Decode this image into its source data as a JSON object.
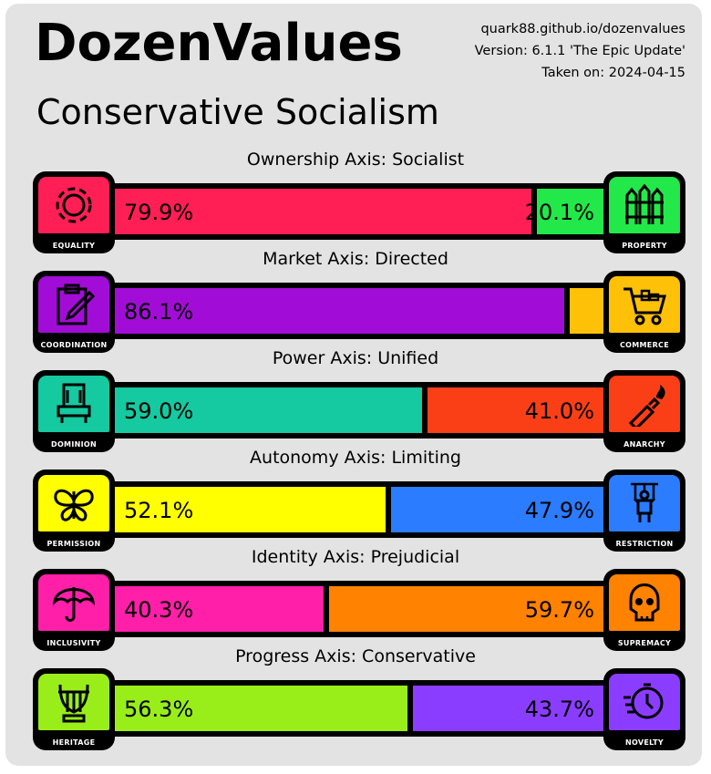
{
  "header": {
    "title": "DozenValues",
    "result": "Conservative Socialism",
    "url": "quark88.github.io/dozenvalues",
    "version": "Version: 6.1.1 'The Epic Update'",
    "taken_on": "Taken on: 2024-04-15"
  },
  "chart_data": {
    "type": "bar",
    "axes": [
      {
        "title": "Ownership Axis: Socialist",
        "left_label": "EQUALITY",
        "right_label": "PROPERTY",
        "left_value": 79.9,
        "right_value": 20.1,
        "left_text": "79.9%",
        "right_text": "20.1%",
        "left_color": "#ff1f55",
        "right_color": "#22e84a",
        "left_icon": "gear-icon",
        "right_icon": "fence-icon"
      },
      {
        "title": "Market Axis: Directed",
        "left_label": "COORDINATION",
        "right_label": "COMMERCE",
        "left_value": 86.1,
        "right_value": 13.9,
        "left_text": "86.1%",
        "right_text": "",
        "left_color": "#a10dd6",
        "right_color": "#ffc107",
        "left_icon": "clipboard-icon",
        "right_icon": "shopping-cart-icon"
      },
      {
        "title": "Power Axis: Unified",
        "left_label": "DOMINION",
        "right_label": "ANARCHY",
        "left_value": 59.0,
        "right_value": 41.0,
        "left_text": "59.0%",
        "right_text": "41.0%",
        "left_color": "#15c9a0",
        "right_color": "#fa3f17",
        "left_icon": "throne-icon",
        "right_icon": "molotov-icon"
      },
      {
        "title": "Autonomy Axis: Limiting",
        "left_label": "PERMISSION",
        "right_label": "RESTRICTION",
        "left_value": 52.1,
        "right_value": 47.9,
        "left_text": "52.1%",
        "right_text": "47.9%",
        "left_color": "#ffff00",
        "right_color": "#2b7cff",
        "left_icon": "butterfly-icon",
        "right_icon": "puppet-icon"
      },
      {
        "title": "Identity Axis: Prejudicial",
        "left_label": "INCLUSIVITY",
        "right_label": "SUPREMACY",
        "left_value": 40.3,
        "right_value": 59.7,
        "left_text": "40.3%",
        "right_text": "59.7%",
        "left_color": "#ff1fa8",
        "right_color": "#ff8200",
        "left_icon": "umbrella-icon",
        "right_icon": "skull-icon"
      },
      {
        "title": "Progress Axis: Conservative",
        "left_label": "HERITAGE",
        "right_label": "NOVELTY",
        "left_value": 56.3,
        "right_value": 43.7,
        "left_text": "56.3%",
        "right_text": "43.7%",
        "left_color": "#99ee1a",
        "right_color": "#8b3dff",
        "left_icon": "lyre-icon",
        "right_icon": "stopwatch-icon"
      }
    ]
  }
}
